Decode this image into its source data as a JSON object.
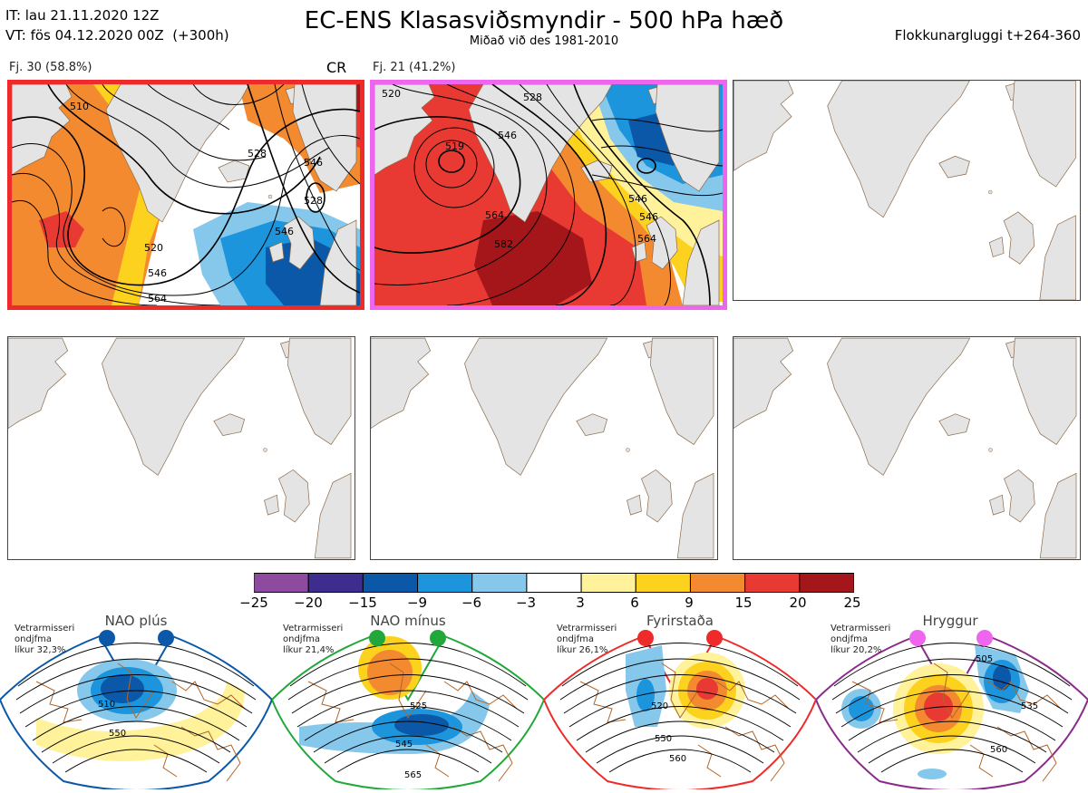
{
  "header": {
    "init_time": "IT: lau 21.11.2020 12Z",
    "valid_time": "VT: fös 04.12.2020 00Z  (+300h)",
    "title": "EC-ENS Klasasviðsmyndir - 500 hPa hæð",
    "subtitle": "Miðað við des 1981-2010",
    "window": "Flokkunargluggi t+264-360"
  },
  "panels": [
    {
      "label": "Fj. 30 (58.8%)",
      "tag": "CR",
      "border_color": "#ee2a2a",
      "contours": [
        "510",
        "520",
        "528",
        "528",
        "546",
        "546",
        "546",
        "564"
      ]
    },
    {
      "label": "Fj. 21 (41.2%)",
      "tag": "",
      "border_color": "#ee66ee",
      "contours": [
        "520",
        "519",
        "528",
        "546",
        "546",
        "564",
        "582",
        "546",
        "564"
      ]
    },
    {
      "label": "",
      "tag": "",
      "border_color": "#444444",
      "contours": []
    },
    {
      "label": "",
      "tag": "",
      "border_color": "#444444",
      "contours": []
    },
    {
      "label": "",
      "tag": "",
      "border_color": "#444444",
      "contours": []
    },
    {
      "label": "",
      "tag": "",
      "border_color": "#444444",
      "contours": []
    }
  ],
  "colorbar": {
    "ticks": [
      "−25",
      "−20",
      "−15",
      "−9",
      "−6",
      "−3",
      "3",
      "6",
      "9",
      "15",
      "20",
      "25"
    ],
    "colors": [
      "#8d4a9e",
      "#3e2c8f",
      "#0b58a8",
      "#1c95dc",
      "#86c8ec",
      "#ffffff",
      "#fff29a",
      "#fdd21e",
      "#f48a30",
      "#e83a32",
      "#a4161a"
    ]
  },
  "regimes": [
    {
      "name": "NAO plús",
      "note_line1": "Vetrarmisseri",
      "note_line2": "ondjfma",
      "note_line3": "líkur 32,3%",
      "color": "#0b58a8",
      "contours": [
        "510",
        "550"
      ]
    },
    {
      "name": "NAO mínus",
      "note_line1": "Vetrarmisseri",
      "note_line2": "ondjfma",
      "note_line3": "líkur 21,4%",
      "color": "#22a83a",
      "contours": [
        "525",
        "545",
        "565"
      ]
    },
    {
      "name": "Fyrirstaða",
      "note_line1": "Vetrarmisseri",
      "note_line2": "ondjfma",
      "note_line3": "líkur 26,1%",
      "color": "#ee2a2a",
      "contours": [
        "520",
        "550",
        "560"
      ]
    },
    {
      "name": "Hryggur",
      "note_line1": "Vetrarmisseri",
      "note_line2": "ondjfma",
      "note_line3": "líkur 20,2%",
      "color": "#8a2a8a",
      "contours": [
        "505",
        "535",
        "560"
      ]
    }
  ]
}
